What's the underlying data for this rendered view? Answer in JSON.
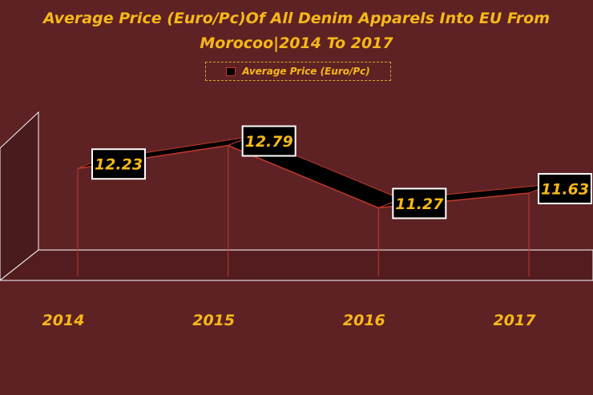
{
  "chart_data": {
    "type": "line",
    "style": "3d-ribbon",
    "title_lines": [
      "Average Price (Euro/Pc)Of All Denim Apparels Into EU From",
      "Morocoo|2014 To 2017"
    ],
    "categories": [
      "2014",
      "2015",
      "2016",
      "2017"
    ],
    "series": [
      {
        "name": "Average Price (Euro/Pc)",
        "values": [
          12.23,
          12.79,
          11.27,
          11.63
        ],
        "labels": [
          "12.23",
          "12.79",
          "11.27",
          "11.63"
        ]
      }
    ],
    "ylim": [
      9.6,
      13.6
    ],
    "grid": false,
    "legend_position": "top-center",
    "data_labels": true,
    "colors": {
      "background": "#5e2224",
      "ribbon": "#000000",
      "ribbon_edge": "#c0392b",
      "text": "#f6b81a",
      "label_box": "#000000",
      "label_border": "#ffffff"
    }
  }
}
